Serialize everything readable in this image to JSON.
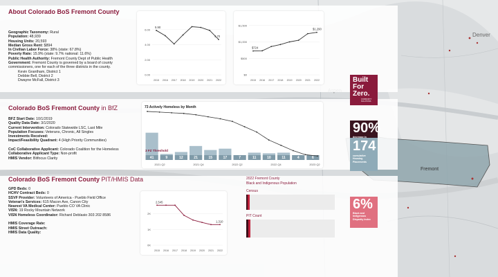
{
  "map": {
    "labels": {
      "denver": "Denver",
      "aspen": "Aspen",
      "fremont": "Fremont"
    },
    "county_color": "#8fa6ad"
  },
  "section1": {
    "title": "About Colorado BoS Fremont County",
    "lines": [
      {
        "k": "Geographic Taxonomy:",
        "v": " Rural"
      },
      {
        "k": "Population:",
        "v": " 48,939"
      },
      {
        "k": "Housing Units:",
        "v": " 20,593"
      },
      {
        "k": "Median Gross Rent:",
        "v": " $894"
      },
      {
        "k": "In Civilian Labor Force:",
        "v": " 38% (state: 67.8%)"
      },
      {
        "k": "Poverty Rate:",
        "v": " 15.9% (state: 9.7% national: 11.6%)"
      },
      {
        "k": "Public Health Authority:",
        "v": " Fremont County Dept of Public Health"
      },
      {
        "k": "Government:",
        "v": " Fremont County is governed by a board of county"
      },
      {
        "k": "",
        "v": "commissioners, one for each of the three districts in the county."
      }
    ],
    "commissioners": [
      "Kevin Grantham, District 1",
      "Debbie Bell, District 2",
      "Dwayne McFall, District 3"
    ]
  },
  "section2": {
    "title_bold": "Colorado BoS Fremont County",
    "title_plain": " in BfZ",
    "lines": [
      {
        "k": "BFZ Start Date:",
        "v": " 10/1/2019"
      },
      {
        "k": "Quality Data Date:",
        "v": " 3/1/2020"
      },
      {
        "k": "Current Intervention:",
        "v": " Colorado Statewide LSC, Last Mile"
      },
      {
        "k": "Population Focuses:",
        "v": " Veterans, Chronic, All Singles"
      },
      {
        "k": "Investments Received:",
        "v": ""
      },
      {
        "k": "Impact/Feasibility Quadrant:",
        "v": " 4 (High Priority Communities)"
      },
      {
        "k": "",
        "v": ""
      },
      {
        "k": "CoC Collaborative Applicant:",
        "v": " Colorado Coalition for the Homeless"
      },
      {
        "k": "Collaborative Applicant Type:",
        "v": " Non-profit"
      },
      {
        "k": "HMIS Vendor:",
        "v": " Bitfocus Clarity"
      }
    ],
    "bfz_logo": {
      "line1": "Built",
      "line2": "For",
      "line3": "Zero.",
      "sub": "COMMUNITY SOLUTIONS",
      "color": "#8a1b3c"
    },
    "tile_decrease": {
      "value": "90%",
      "lines": [
        "decrease in",
        "Actively",
        "Homeless"
      ],
      "color": "#3a1520"
    },
    "tile_placements": {
      "value": "174",
      "lines": [
        "cumulative",
        "Housing",
        "Placements"
      ],
      "color": "#8fabb8"
    }
  },
  "section3": {
    "title_bold": "Colorado BoS Fremont County",
    "title_plain": " PIT/HMIS Data",
    "lines": [
      {
        "k": "GPD Beds:",
        "v": " 0"
      },
      {
        "k": "HCHV Contract Beds:",
        "v": " 0"
      },
      {
        "k": "SSVF Provider:",
        "v": " Volunteers of America - Pueblo Field Office"
      },
      {
        "k": "Veteran's Services:",
        "v": " 615 Macon Ave, Canon City"
      },
      {
        "k": "Nearest VA Medical Center:",
        "v": " Pueblo CO VA Clinic"
      },
      {
        "k": "VISN:",
        "v": " 19 Rocky Mountain Network"
      },
      {
        "k": "VISN Homeless Coordinator:",
        "v": " Richard Deblasio 303 202 8586"
      },
      {
        "k": "",
        "v": ""
      },
      {
        "k": "HMIS Coverage Rate:",
        "v": ""
      },
      {
        "k": "HMIS Street Outreach:",
        "v": ""
      },
      {
        "k": "HMIS Data Quality:",
        "v": ""
      }
    ],
    "tile_bipoc": {
      "value": "6%",
      "lines": [
        "Black and",
        "Indigenous",
        "Disparity Index"
      ],
      "color": "#e07080"
    },
    "disparity": {
      "title1": "2022 Fremont County",
      "title2": "Black and Indigenous Population",
      "census_label": "Census",
      "pit_label": "PIT Count",
      "census_segments": [
        0.01,
        0.01
      ],
      "pit_segments": [
        0.02,
        0.03
      ],
      "colors": [
        "#3a0d18",
        "#c0203a",
        "#f08a9a"
      ]
    }
  },
  "chart_data": [
    {
      "id": "chart1",
      "type": "line",
      "x": [
        "2015",
        "2016",
        "2017",
        "2018",
        "2019",
        "2020",
        "2021",
        "2022"
      ],
      "values": [
        5.9,
        5.2,
        4.1,
        5.3,
        6.4,
        6.3,
        5.9,
        4.7
      ],
      "point_labels": {
        "first": "5.90",
        "last": "4.70"
      },
      "yticks": [
        "0.00",
        "2.00",
        "4.00",
        "6.00"
      ],
      "ylim": [
        0,
        7
      ],
      "color": "#333333"
    },
    {
      "id": "chart2",
      "type": "line",
      "x": [
        "2015",
        "2016",
        "2017",
        "2018",
        "2019",
        "2020",
        "2021",
        "2022"
      ],
      "values": [
        724,
        730,
        860,
        920,
        1000,
        1050,
        1250,
        1290
      ],
      "point_labels": {
        "first": "$724",
        "last": "$1,290"
      },
      "yticks": [
        "$0",
        "$500",
        "$1,000",
        "$1,500"
      ],
      "ylim": [
        0,
        1600
      ],
      "color": "#333333"
    },
    {
      "id": "chart3",
      "type": "bar+line",
      "title": "73 Actively Homeless by Month",
      "threshold_label": "3 FZ Threshold",
      "bar_labels": [
        "41",
        "9",
        "12",
        "21",
        "15",
        "17",
        "7",
        "11",
        "10",
        "11",
        "4",
        "6"
      ],
      "bar_values": [
        41,
        9,
        12,
        21,
        15,
        17,
        7,
        11,
        10,
        11,
        4,
        6
      ],
      "line_values": [
        73,
        72,
        71,
        70,
        68,
        65,
        62,
        58,
        50,
        42,
        30,
        22,
        14,
        8,
        6
      ],
      "xticks": [
        "2021 Q2",
        "2021 Q4",
        "2022 Q2",
        "2022 Q4",
        "2023 Q2"
      ],
      "bar_color": "#a9bfcb",
      "line_color": "#333333",
      "threshold_color": "#8a1b3c"
    },
    {
      "id": "chart4",
      "type": "line",
      "x": [
        "2015",
        "2016",
        "2017",
        "2018",
        "2019",
        "2020",
        "2021",
        "2022"
      ],
      "values": [
        2545,
        2545,
        2545,
        1900,
        1600,
        1450,
        1310,
        1310
      ],
      "point_labels": {
        "first": "2,545",
        "last": "1,310"
      },
      "yticks": [
        "0K",
        "1K",
        "2K"
      ],
      "ylim": [
        0,
        3000
      ],
      "color": "#8a1b3c"
    }
  ]
}
